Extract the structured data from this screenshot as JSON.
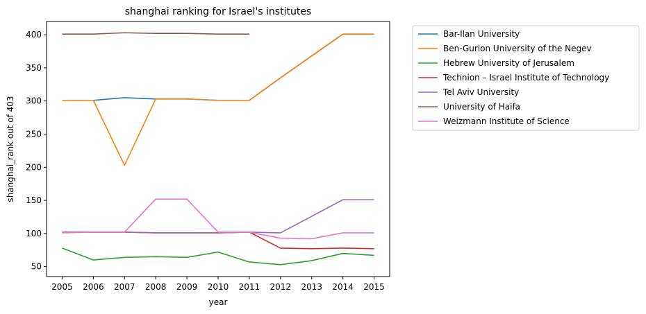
{
  "chart_data": {
    "type": "line",
    "title": "shanghai ranking for Israel's institutes",
    "xlabel": "year",
    "ylabel": "shanghai_rank out of 403",
    "x": [
      2005,
      2006,
      2007,
      2008,
      2009,
      2010,
      2011,
      2012,
      2013,
      2014,
      2015
    ],
    "xlim": [
      2004.5,
      2015.5
    ],
    "ylim": [
      35,
      420
    ],
    "yticks": [
      50,
      100,
      150,
      200,
      250,
      300,
      350,
      400
    ],
    "grid": false,
    "legend_position": "outside-right",
    "series": [
      {
        "name": "Bar-Ilan University",
        "color": "#1f77b4",
        "values": [
          301,
          301,
          305,
          303,
          303,
          301,
          301,
          335,
          368,
          401,
          401
        ]
      },
      {
        "name": "Ben-Gurion University of the Negev",
        "color": "#ff7f0e",
        "values": [
          301,
          301,
          203,
          303,
          303,
          301,
          301,
          335,
          368,
          401,
          401
        ]
      },
      {
        "name": "Hebrew University of Jerusalem",
        "color": "#2ca02c",
        "values": [
          78,
          60,
          64,
          65,
          64,
          72,
          57,
          53,
          59,
          70,
          67
        ]
      },
      {
        "name": "Technion – Israel Institute of Technology",
        "color": "#d62728",
        "values": [
          102,
          102,
          102,
          101,
          101,
          101,
          102,
          78,
          77,
          78,
          77
        ]
      },
      {
        "name": "Tel Aviv University",
        "color": "#9467bd",
        "values": [
          102,
          102,
          102,
          101,
          101,
          101,
          102,
          101,
          126,
          151,
          151
        ]
      },
      {
        "name": "University of Haifa",
        "color": "#8c564b",
        "values": [
          401,
          401,
          403,
          402,
          402,
          401,
          401,
          null,
          null,
          null,
          null
        ]
      },
      {
        "name": "Weizmann Institute of Science",
        "color": "#e377c2",
        "values": [
          101,
          102,
          102,
          152,
          152,
          102,
          102,
          93,
          92,
          101,
          101
        ]
      }
    ]
  }
}
